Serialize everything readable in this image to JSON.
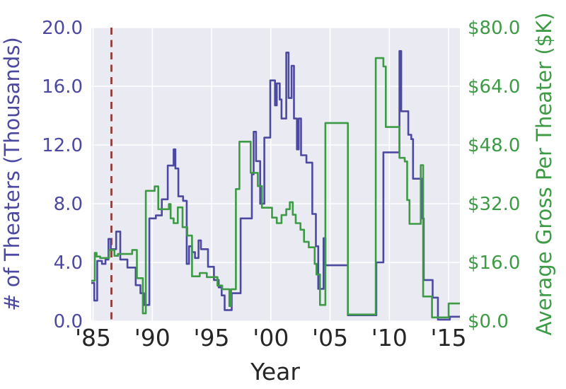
{
  "chart_data": {
    "type": "line",
    "subtype": "step-post, dual y-axis",
    "title": "",
    "xlabel": "Year",
    "ylabel_left": "# of Theaters (Thousands)",
    "ylabel_right": "Average Gross Per Theater ($K)",
    "grid": true,
    "legend": "none",
    "xlim": [
      1984.85,
      2015.95
    ],
    "ylim_left": [
      0,
      20
    ],
    "ylim_right": [
      0,
      80
    ],
    "x_ticks": [
      {
        "year": 1985,
        "label": "'85"
      },
      {
        "year": 1990,
        "label": "'90"
      },
      {
        "year": 1995,
        "label": "'95"
      },
      {
        "year": 2000,
        "label": "'00"
      },
      {
        "year": 2005,
        "label": "'05"
      },
      {
        "year": 2010,
        "label": "'10"
      },
      {
        "year": 2015,
        "label": "'15"
      }
    ],
    "y_ticks_left": [
      {
        "value": 0,
        "label": "0.0"
      },
      {
        "value": 4,
        "label": "4.0"
      },
      {
        "value": 8,
        "label": "8.0"
      },
      {
        "value": 12,
        "label": "12.0"
      },
      {
        "value": 16,
        "label": "16.0"
      },
      {
        "value": 20,
        "label": "20.0"
      }
    ],
    "y_ticks_right": [
      {
        "value": 0,
        "label": "$0.0"
      },
      {
        "value": 16,
        "label": "$16.0"
      },
      {
        "value": 32,
        "label": "$32.0"
      },
      {
        "value": 48,
        "label": "$48.0"
      },
      {
        "value": 64,
        "label": "$64.0"
      },
      {
        "value": 80,
        "label": "$80.0"
      }
    ],
    "annotation_line": {
      "x": 1986.55,
      "style": "dashed",
      "color": "#8e3d3a",
      "orientation": "vertical"
    },
    "colors": {
      "theaters_line": "#4c49a0",
      "gross_line": "#3d9b45",
      "plot_background": "#eaeaf2",
      "gridline": "#ffffff",
      "x_text": "#262626",
      "dashed_marker": "#8e3d3a"
    },
    "series": [
      {
        "name": "# of Theaters (Thousands)",
        "axis": "left",
        "color": "#4c49a0",
        "points": [
          [
            1984.85,
            2.6
          ],
          [
            1985.1,
            1.4
          ],
          [
            1985.35,
            4.1
          ],
          [
            1985.75,
            3.9
          ],
          [
            1986.05,
            4.2
          ],
          [
            1986.3,
            5.6
          ],
          [
            1986.5,
            4.9
          ],
          [
            1986.95,
            6.1
          ],
          [
            1987.3,
            4.2
          ],
          [
            1987.9,
            3.65
          ],
          [
            1988.6,
            2.45
          ],
          [
            1989.0,
            1.9
          ],
          [
            1989.3,
            1.1
          ],
          [
            1989.75,
            7.0
          ],
          [
            1990.3,
            7.2
          ],
          [
            1990.8,
            8.3
          ],
          [
            1991.3,
            10.6
          ],
          [
            1991.8,
            11.7
          ],
          [
            1991.95,
            10.4
          ],
          [
            1992.2,
            8.5
          ],
          [
            1992.6,
            8.2
          ],
          [
            1992.9,
            3.9
          ],
          [
            1993.1,
            5.1
          ],
          [
            1993.35,
            4.7
          ],
          [
            1993.6,
            4.3
          ],
          [
            1993.9,
            5.5
          ],
          [
            1994.1,
            4.9
          ],
          [
            1994.7,
            3.7
          ],
          [
            1995.2,
            2.8
          ],
          [
            1995.6,
            2.3
          ],
          [
            1995.85,
            1.75
          ],
          [
            1996.1,
            0.75
          ],
          [
            1996.7,
            1.9
          ],
          [
            1997.45,
            7.0
          ],
          [
            1998.4,
            10.0
          ],
          [
            1998.55,
            12.9
          ],
          [
            1998.75,
            10.9
          ],
          [
            1999.1,
            8.0
          ],
          [
            1999.45,
            12.5
          ],
          [
            1999.95,
            16.4
          ],
          [
            2000.35,
            14.7
          ],
          [
            2000.5,
            16.2
          ],
          [
            2000.75,
            15.1
          ],
          [
            2000.9,
            13.8
          ],
          [
            2001.3,
            18.3
          ],
          [
            2001.5,
            15.2
          ],
          [
            2001.75,
            17.4
          ],
          [
            2001.95,
            13.8
          ],
          [
            2002.2,
            11.7
          ],
          [
            2002.35,
            13.8
          ],
          [
            2002.55,
            11.3
          ],
          [
            2003.0,
            10.8
          ],
          [
            2003.5,
            7.3
          ],
          [
            2003.8,
            5.1
          ],
          [
            2004.0,
            2.2
          ],
          [
            2004.45,
            5.65
          ],
          [
            2004.6,
            3.8
          ],
          [
            2006.5,
            0.4
          ],
          [
            2008.9,
            4.0
          ],
          [
            2009.5,
            11.5
          ],
          [
            2010.85,
            18.4
          ],
          [
            2011.0,
            14.3
          ],
          [
            2011.6,
            12.7
          ],
          [
            2011.85,
            12.4
          ],
          [
            2012.0,
            9.7
          ],
          [
            2012.75,
            7.0
          ],
          [
            2012.9,
            2.8
          ],
          [
            2013.65,
            1.6
          ],
          [
            2014.1,
            0.1
          ],
          [
            2015.1,
            0.3
          ]
        ]
      },
      {
        "name": "Average Gross Per Theater ($K)",
        "axis": "right",
        "color": "#3d9b45",
        "points": [
          [
            1984.85,
            11.0
          ],
          [
            1985.15,
            18.6
          ],
          [
            1985.3,
            17.6
          ],
          [
            1985.6,
            17.2
          ],
          [
            1986.35,
            19.4
          ],
          [
            1986.8,
            17.8
          ],
          [
            1987.1,
            18.3
          ],
          [
            1988.3,
            19.4
          ],
          [
            1988.7,
            11.7
          ],
          [
            1989.2,
            2.1
          ],
          [
            1989.45,
            35.5
          ],
          [
            1990.2,
            36.7
          ],
          [
            1990.5,
            30.5
          ],
          [
            1991.4,
            31.9
          ],
          [
            1991.55,
            28.0
          ],
          [
            1991.8,
            26.7
          ],
          [
            1992.15,
            31.0
          ],
          [
            1992.55,
            25.6
          ],
          [
            1992.95,
            23.3
          ],
          [
            1993.35,
            12.2
          ],
          [
            1994.0,
            13.1
          ],
          [
            1994.6,
            12.0
          ],
          [
            1995.5,
            9.7
          ],
          [
            1995.9,
            8.7
          ],
          [
            1996.5,
            4.1
          ],
          [
            1996.65,
            8.7
          ],
          [
            1997.05,
            36.0
          ],
          [
            1997.35,
            48.9
          ],
          [
            1998.3,
            40.4
          ],
          [
            1998.9,
            36.8
          ],
          [
            1999.25,
            30.9
          ],
          [
            2000.1,
            28.2
          ],
          [
            2000.5,
            26.7
          ],
          [
            2000.9,
            28.9
          ],
          [
            2001.3,
            30.5
          ],
          [
            2001.6,
            32.4
          ],
          [
            2001.85,
            29.0
          ],
          [
            2002.1,
            26.7
          ],
          [
            2002.5,
            24.9
          ],
          [
            2002.8,
            21.6
          ],
          [
            2003.2,
            20.1
          ],
          [
            2003.7,
            15.6
          ],
          [
            2003.85,
            12.7
          ],
          [
            2004.15,
            4.4
          ],
          [
            2004.6,
            54.0
          ],
          [
            2006.5,
            1.8
          ],
          [
            2008.85,
            71.7
          ],
          [
            2009.5,
            69.4
          ],
          [
            2009.7,
            52.9
          ],
          [
            2010.85,
            44.5
          ],
          [
            2011.3,
            43.5
          ],
          [
            2011.5,
            33.0
          ],
          [
            2011.7,
            26.5
          ],
          [
            2012.65,
            42.5
          ],
          [
            2012.85,
            6.7
          ],
          [
            2013.6,
            1.0
          ],
          [
            2015.0,
            4.8
          ]
        ]
      }
    ]
  }
}
